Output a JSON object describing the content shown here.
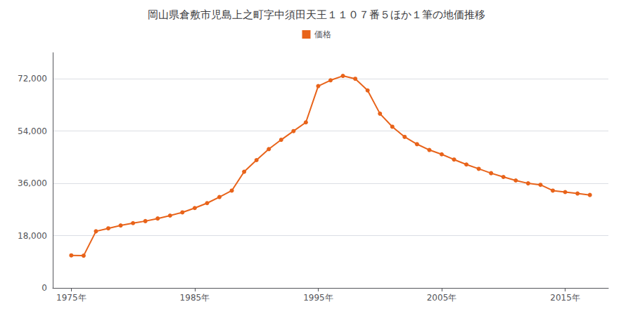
{
  "chart_data": {
    "type": "line",
    "title": "岡山県倉敷市児島上之町字中須田天王１１０７番５ほか１筆の地価推移",
    "series": [
      {
        "name": "価格",
        "color": "#e8631a",
        "marker": "circle",
        "values": [
          11200,
          11100,
          19500,
          20500,
          21500,
          22300,
          23000,
          23900,
          24900,
          26000,
          27500,
          29200,
          31300,
          33500,
          40000,
          44000,
          47800,
          51000,
          54000,
          57000,
          69500,
          71500,
          73000,
          72000,
          68000,
          60000,
          55500,
          52000,
          49500,
          47500,
          46000,
          44200,
          42500,
          41000,
          39500,
          38200,
          37000,
          36000,
          35500,
          33500,
          33000,
          32500,
          32000
        ]
      }
    ],
    "x": [
      1975,
      1976,
      1977,
      1978,
      1979,
      1980,
      1981,
      1982,
      1983,
      1984,
      1985,
      1986,
      1987,
      1988,
      1989,
      1990,
      1991,
      1992,
      1993,
      1994,
      1995,
      1996,
      1997,
      1998,
      1999,
      2000,
      2001,
      2002,
      2003,
      2004,
      2005,
      2006,
      2007,
      2008,
      2009,
      2010,
      2011,
      2012,
      2013,
      2014,
      2015,
      2016,
      2017
    ],
    "xlim": [
      1973.5,
      2018.5
    ],
    "xticks": [
      {
        "value": 1975,
        "label": "1975年"
      },
      {
        "value": 1985,
        "label": "1985年"
      },
      {
        "value": 1995,
        "label": "1995年"
      },
      {
        "value": 2005,
        "label": "2005年"
      },
      {
        "value": 2015,
        "label": "2015年"
      }
    ],
    "ylim": [
      0,
      81000
    ],
    "yticks": [
      0,
      {
        "value": 18000,
        "label": "18,000"
      },
      {
        "value": 36000,
        "label": "36,000"
      },
      {
        "value": 54000,
        "label": "54,000"
      },
      {
        "value": 72000,
        "label": "72,000"
      }
    ],
    "grid": "y",
    "legend": "top"
  }
}
